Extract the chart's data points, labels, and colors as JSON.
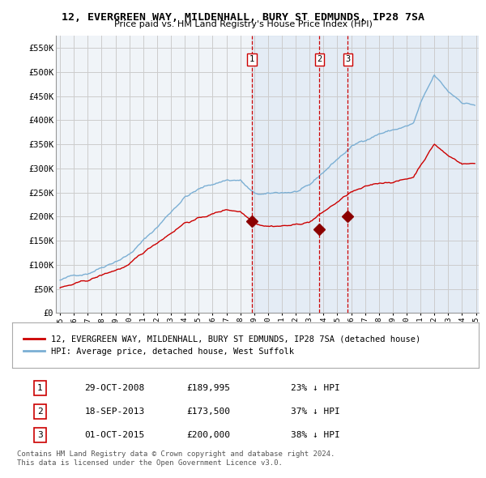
{
  "title": "12, EVERGREEN WAY, MILDENHALL, BURY ST EDMUNDS, IP28 7SA",
  "subtitle": "Price paid vs. HM Land Registry's House Price Index (HPI)",
  "ylim": [
    0,
    575000
  ],
  "yticks": [
    0,
    50000,
    100000,
    150000,
    200000,
    250000,
    300000,
    350000,
    400000,
    450000,
    500000,
    550000
  ],
  "ytick_labels": [
    "£0",
    "£50K",
    "£100K",
    "£150K",
    "£200K",
    "£250K",
    "£300K",
    "£350K",
    "£400K",
    "£450K",
    "£500K",
    "£550K"
  ],
  "hpi_color": "#7bafd4",
  "hpi_fill_color": "#d6e8f5",
  "price_color": "#cc0000",
  "vline_color": "#cc0000",
  "background_color": "#f0f4f8",
  "grid_color": "#cccccc",
  "sale_dates_num": [
    2008.83,
    2013.71,
    2015.75
  ],
  "sale_prices": [
    189995,
    173500,
    200000
  ],
  "sale_labels": [
    "1",
    "2",
    "3"
  ],
  "legend_label_price": "12, EVERGREEN WAY, MILDENHALL, BURY ST EDMUNDS, IP28 7SA (detached house)",
  "legend_label_hpi": "HPI: Average price, detached house, West Suffolk",
  "table_rows": [
    [
      "1",
      "29-OCT-2008",
      "£189,995",
      "23% ↓ HPI"
    ],
    [
      "2",
      "18-SEP-2013",
      "£173,500",
      "37% ↓ HPI"
    ],
    [
      "3",
      "01-OCT-2015",
      "£200,000",
      "38% ↓ HPI"
    ]
  ],
  "footnote": "Contains HM Land Registry data © Crown copyright and database right 2024.\nThis data is licensed under the Open Government Licence v3.0.",
  "xmin": 1995.0,
  "xmax": 2025.2
}
